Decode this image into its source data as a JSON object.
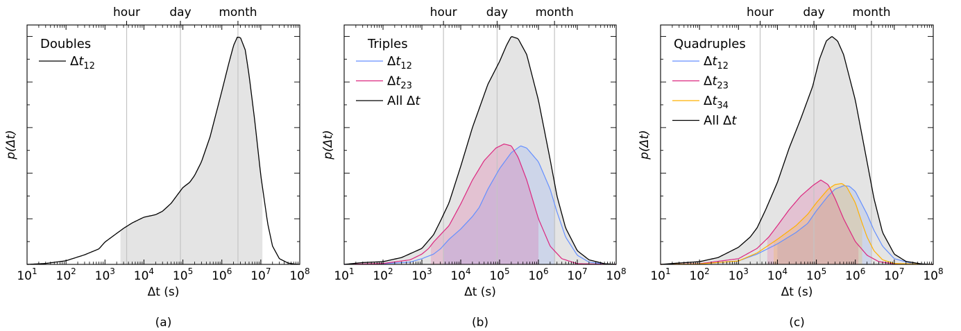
{
  "chart_data": [
    {
      "type": "area",
      "panel_label": "(a)",
      "legend_title": "Doubles",
      "legend_placement": "top-left",
      "xlabel": "Δt (s)",
      "ylabel": "p(Δt)",
      "x_scale": "log",
      "xlim": [
        10,
        100000000
      ],
      "ylim": [
        0,
        1.05
      ],
      "x_ticks": [
        10,
        100,
        1000,
        10000,
        100000,
        1000000,
        10000000,
        100000000
      ],
      "x_tick_labels": [
        "10^1",
        "10^2",
        "10^3",
        "10^4",
        "10^5",
        "10^6",
        "10^7",
        "10^8"
      ],
      "top_axis_markers": [
        {
          "label": "hour",
          "x": 3600
        },
        {
          "label": "day",
          "x": 86400
        },
        {
          "label": "month",
          "x": 2592000
        }
      ],
      "shaded_range": [
        2500,
        11000000
      ],
      "series": [
        {
          "name": "Δt12",
          "color": "#000000",
          "x": [
            10,
            30,
            100,
            300,
            700,
            1000,
            2000,
            3000,
            5000,
            10000,
            20000,
            30000,
            50000,
            80000,
            100000,
            150000,
            200000,
            300000,
            500000,
            1000000,
            1500000,
            2000000,
            2500000,
            3000000,
            4000000,
            5000000,
            7000000,
            10000000,
            15000000,
            20000000,
            30000000,
            50000000,
            70000000,
            100000000
          ],
          "y": [
            0.0,
            0.004,
            0.016,
            0.042,
            0.068,
            0.098,
            0.136,
            0.158,
            0.182,
            0.207,
            0.218,
            0.233,
            0.268,
            0.315,
            0.337,
            0.36,
            0.39,
            0.45,
            0.56,
            0.76,
            0.88,
            0.96,
            0.997,
            0.995,
            0.94,
            0.83,
            0.63,
            0.39,
            0.18,
            0.08,
            0.025,
            0.006,
            0.002,
            0.0
          ]
        }
      ]
    },
    {
      "type": "area",
      "panel_label": "(b)",
      "legend_title": "Triples",
      "legend_placement": "top-left",
      "xlabel": "Δt (s)",
      "ylabel": "p(Δt)",
      "x_scale": "log",
      "xlim": [
        10,
        100000000
      ],
      "ylim": [
        0,
        1.05
      ],
      "x_ticks": [
        10,
        100,
        1000,
        10000,
        100000,
        1000000,
        10000000,
        100000000
      ],
      "x_tick_labels": [
        "10^1",
        "10^2",
        "10^3",
        "10^4",
        "10^5",
        "10^6",
        "10^7",
        "10^8"
      ],
      "top_axis_markers": [
        {
          "label": "hour",
          "x": 3600
        },
        {
          "label": "day",
          "x": 86400
        },
        {
          "label": "month",
          "x": 2592000
        }
      ],
      "series": [
        {
          "name": "Δt12",
          "color": "#648fff",
          "shaded_range": [
            3500,
            2700000
          ],
          "x": [
            10,
            100,
            500,
            1000,
            2000,
            3000,
            5000,
            10000,
            20000,
            30000,
            50000,
            100000,
            200000,
            350000,
            500000,
            1000000,
            2000000,
            3000000,
            5000000,
            10000000,
            20000000,
            50000000,
            100000000
          ],
          "y": [
            0.0,
            0.003,
            0.01,
            0.025,
            0.045,
            0.068,
            0.11,
            0.155,
            0.21,
            0.25,
            0.33,
            0.42,
            0.49,
            0.52,
            0.51,
            0.45,
            0.33,
            0.23,
            0.12,
            0.04,
            0.01,
            0.002,
            0.0
          ]
        },
        {
          "name": "Δt23",
          "color": "#dc267f",
          "shaded_range": [
            1700,
            1000000
          ],
          "x": [
            10,
            100,
            500,
            1000,
            1500,
            2000,
            3000,
            5000,
            10000,
            20000,
            40000,
            80000,
            130000,
            200000,
            300000,
            500000,
            1000000,
            2000000,
            4000000,
            10000000,
            100000000
          ],
          "y": [
            0.0,
            0.004,
            0.02,
            0.045,
            0.07,
            0.098,
            0.13,
            0.17,
            0.265,
            0.37,
            0.455,
            0.51,
            0.528,
            0.52,
            0.47,
            0.37,
            0.2,
            0.08,
            0.025,
            0.003,
            0.0
          ]
        },
        {
          "name": "All Δt",
          "color": "#000000",
          "x": [
            10,
            30,
            100,
            300,
            1000,
            2000,
            3000,
            5000,
            10000,
            20000,
            50000,
            100000,
            150000,
            200000,
            300000,
            500000,
            1000000,
            2000000,
            3000000,
            5000000,
            10000000,
            20000000,
            50000000,
            100000000
          ],
          "y": [
            0.0,
            0.008,
            0.012,
            0.03,
            0.07,
            0.13,
            0.19,
            0.27,
            0.43,
            0.6,
            0.79,
            0.89,
            0.96,
            1.0,
            0.99,
            0.92,
            0.72,
            0.46,
            0.3,
            0.16,
            0.06,
            0.02,
            0.003,
            0.0
          ]
        }
      ]
    },
    {
      "type": "area",
      "panel_label": "(c)",
      "legend_title": "Quadruples",
      "legend_placement": "top-left",
      "xlabel": "Δt (s)",
      "ylabel": "p(Δt)",
      "x_scale": "log",
      "xlim": [
        10,
        100000000
      ],
      "ylim": [
        0,
        1.05
      ],
      "x_ticks": [
        10,
        100,
        1000,
        10000,
        100000,
        1000000,
        10000000,
        100000000
      ],
      "x_tick_labels": [
        "10^1",
        "10^2",
        "10^3",
        "10^4",
        "10^5",
        "10^6",
        "10^7",
        "10^8"
      ],
      "top_axis_markers": [
        {
          "label": "hour",
          "x": 3600
        },
        {
          "label": "day",
          "x": 86400
        },
        {
          "label": "month",
          "x": 2592000
        }
      ],
      "series": [
        {
          "name": "Δt12",
          "color": "#648fff",
          "shaded_range": [
            10000,
            2500000
          ],
          "x": [
            10,
            100,
            1000,
            3000,
            10000,
            30000,
            60000,
            100000,
            200000,
            300000,
            500000,
            700000,
            1000000,
            2000000,
            3000000,
            5000000,
            10000000,
            30000000,
            100000000
          ],
          "y": [
            0.0,
            0.002,
            0.015,
            0.045,
            0.09,
            0.14,
            0.18,
            0.235,
            0.3,
            0.33,
            0.345,
            0.343,
            0.32,
            0.22,
            0.15,
            0.08,
            0.025,
            0.003,
            0.0
          ]
        },
        {
          "name": "Δt23",
          "color": "#dc267f",
          "shaded_range": [
            5500,
            1200000
          ],
          "x": [
            10,
            100,
            1000,
            3000,
            6000,
            10000,
            20000,
            40000,
            80000,
            130000,
            200000,
            300000,
            500000,
            1000000,
            2000000,
            4000000,
            10000000,
            100000000
          ],
          "y": [
            0.0,
            0.003,
            0.025,
            0.07,
            0.12,
            0.17,
            0.24,
            0.3,
            0.345,
            0.37,
            0.35,
            0.29,
            0.2,
            0.1,
            0.04,
            0.012,
            0.002,
            0.0
          ]
        },
        {
          "name": "Δt34",
          "color": "#ffb000",
          "shaded_range": [
            8000,
            1500000
          ],
          "x": [
            10,
            100,
            1000,
            3000,
            10000,
            30000,
            60000,
            100000,
            200000,
            300000,
            450000,
            600000,
            1000000,
            1500000,
            2000000,
            3000000,
            5000000,
            10000000,
            100000000
          ],
          "y": [
            0.0,
            0.002,
            0.015,
            0.05,
            0.11,
            0.17,
            0.22,
            0.27,
            0.33,
            0.35,
            0.355,
            0.34,
            0.27,
            0.18,
            0.12,
            0.06,
            0.02,
            0.004,
            0.0
          ]
        },
        {
          "name": "All Δt",
          "color": "#000000",
          "x": [
            10,
            30,
            100,
            300,
            1000,
            2000,
            3000,
            5000,
            10000,
            20000,
            40000,
            80000,
            120000,
            180000,
            250000,
            350000,
            500000,
            1000000,
            2000000,
            3000000,
            5000000,
            10000000,
            20000000,
            50000000,
            100000000
          ],
          "y": [
            0.0,
            0.006,
            0.012,
            0.03,
            0.075,
            0.12,
            0.16,
            0.24,
            0.36,
            0.51,
            0.64,
            0.78,
            0.9,
            0.98,
            1.0,
            0.98,
            0.92,
            0.72,
            0.45,
            0.29,
            0.14,
            0.045,
            0.013,
            0.002,
            0.0
          ]
        }
      ]
    }
  ]
}
